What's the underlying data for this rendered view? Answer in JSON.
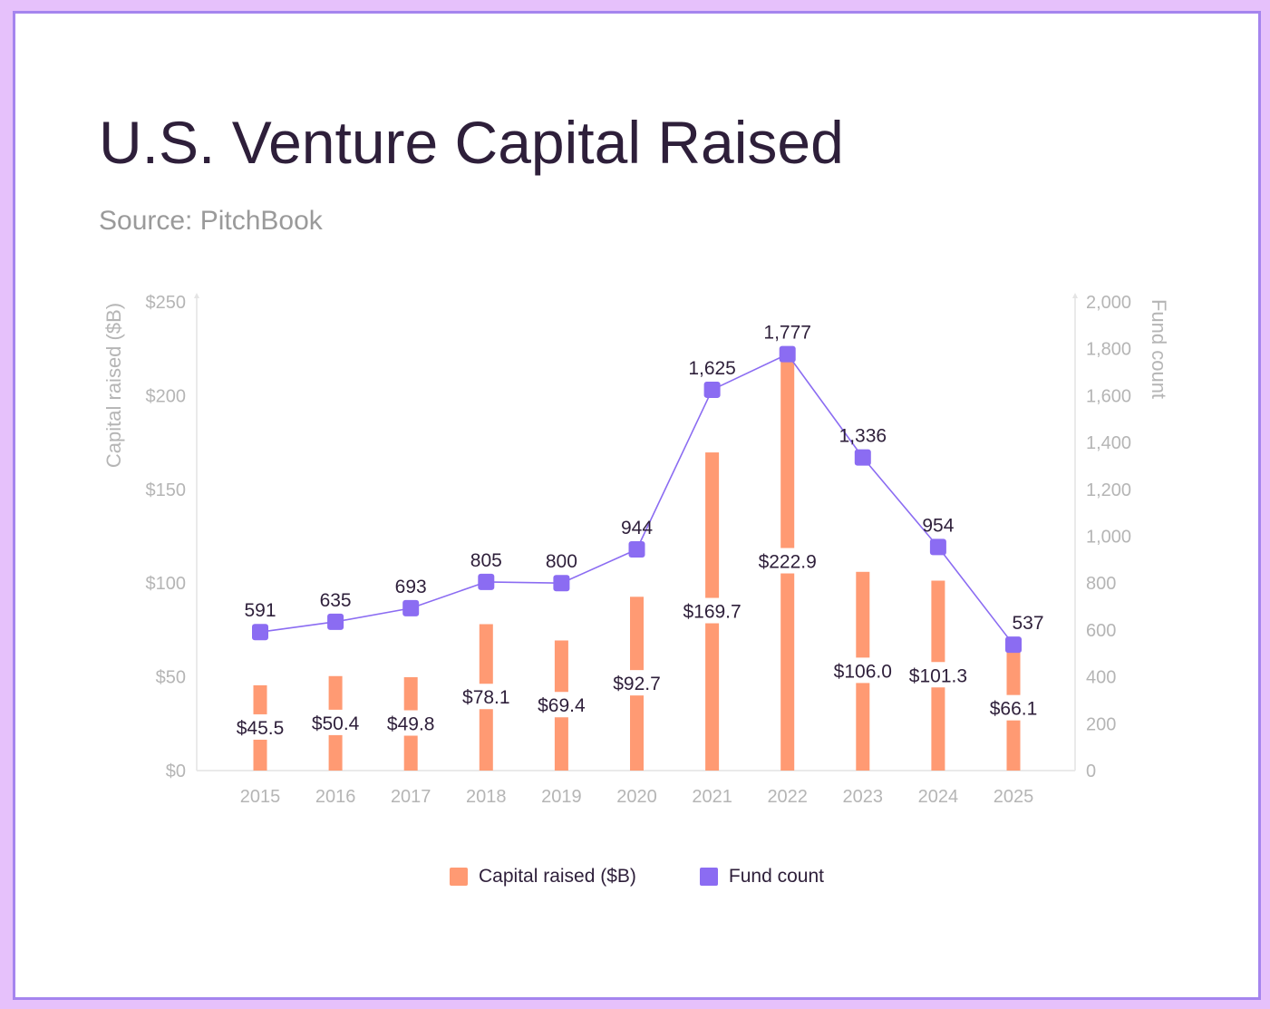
{
  "title": "U.S. Venture Capital Raised",
  "subtitle": "Source: PitchBook",
  "colors": {
    "bar": "#ff9a73",
    "line": "#8b6cf2",
    "label": "#2e1f3a",
    "axis_text": "#b5b5b5",
    "axis_line": "#e4e4e4"
  },
  "chart_data": {
    "type": "bar",
    "title": "U.S. Venture Capital Raised",
    "subtitle": "Source: PitchBook",
    "categories": [
      "2015",
      "2016",
      "2017",
      "2018",
      "2019",
      "2020",
      "2021",
      "2022",
      "2023",
      "2024",
      "2025"
    ],
    "series": [
      {
        "name": "Capital raised ($B)",
        "type": "bar",
        "axis": "left",
        "values": [
          45.5,
          50.4,
          49.8,
          78.1,
          69.4,
          92.7,
          169.7,
          222.9,
          106.0,
          101.3,
          66.1
        ],
        "labels": [
          "$45.5",
          "$50.4",
          "$49.8",
          "$78.1",
          "$69.4",
          "$92.7",
          "$169.7",
          "$222.9",
          "$106.0",
          "$101.3",
          "$66.1"
        ]
      },
      {
        "name": "Fund count",
        "type": "line",
        "axis": "right",
        "values": [
          591,
          635,
          693,
          805,
          800,
          944,
          1625,
          1777,
          1336,
          954,
          537
        ],
        "labels": [
          "591",
          "635",
          "693",
          "805",
          "800",
          "944",
          "1,625",
          "1,777",
          "1,336",
          "954",
          "537"
        ]
      }
    ],
    "ylabel": "Capital raised ($B)",
    "y2label": "Fund count",
    "ylim": [
      0,
      250
    ],
    "y2lim": [
      0,
      2000
    ],
    "yticks": [
      "$0",
      "$50",
      "$100",
      "$150",
      "$200",
      "$250"
    ],
    "y2ticks": [
      "0",
      "200",
      "400",
      "600",
      "800",
      "1,000",
      "1,200",
      "1,400",
      "1,600",
      "1,800",
      "2,000"
    ],
    "grid": false,
    "legend": "bottom-center"
  }
}
